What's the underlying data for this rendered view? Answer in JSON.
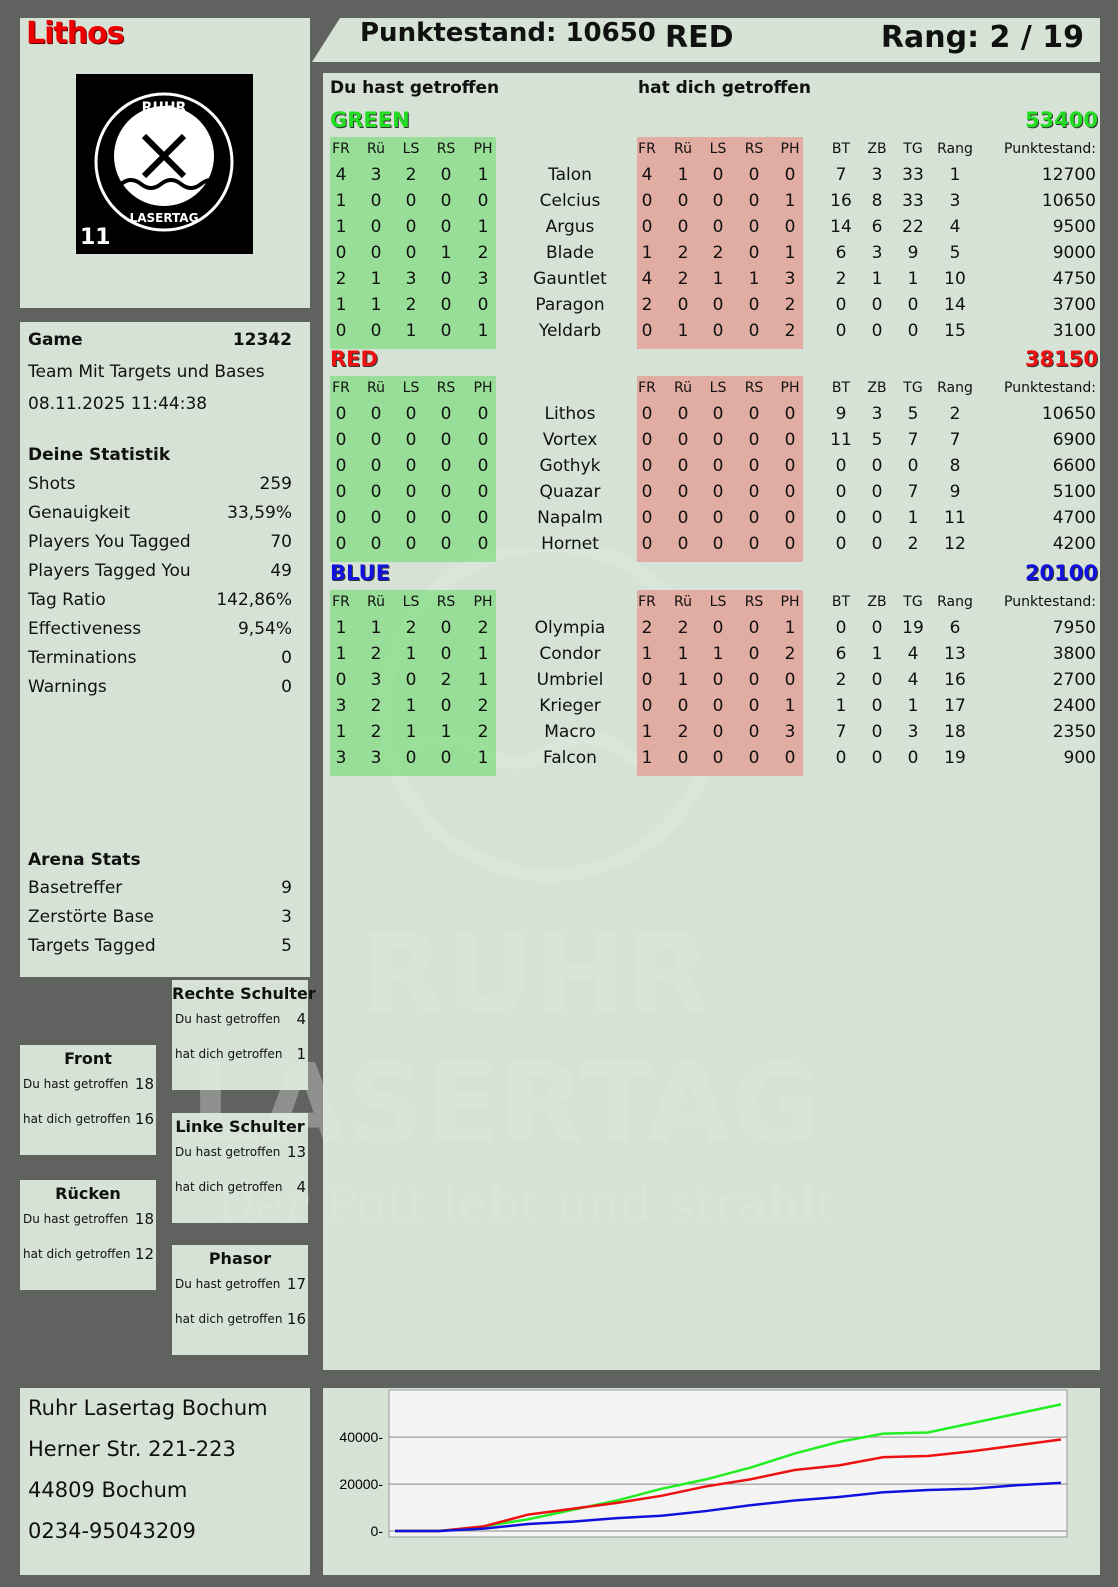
{
  "player": {
    "name": "Lithos",
    "score_label": "Punktestand: 10650",
    "team": "RED",
    "rank_label": "Rang: 2 / 19",
    "logo_text": "RUHR LASERTAG",
    "logo_number": "11"
  },
  "game": {
    "label": "Game",
    "id": "12342",
    "mode": "Team Mit Targets und Bases",
    "datetime": "08.11.2025 11:44:38"
  },
  "stats": {
    "title": "Deine Statistik",
    "items": [
      [
        "Shots",
        "259"
      ],
      [
        "Genauigkeit",
        "33,59%"
      ],
      [
        "Players You Tagged",
        "70"
      ],
      [
        "Players Tagged You",
        "49"
      ],
      [
        "Tag Ratio",
        "142,86%"
      ],
      [
        "Effectiveness",
        "9,54%"
      ],
      [
        "Terminations",
        "0"
      ],
      [
        "Warnings",
        "0"
      ]
    ]
  },
  "arena": {
    "title": "Arena Stats",
    "items": [
      [
        "Basetreffer",
        "9"
      ],
      [
        "Zerstörte Base",
        "3"
      ],
      [
        "Targets Tagged",
        "5"
      ]
    ]
  },
  "zones": [
    {
      "title": "Rechte Schulter",
      "hit": "4",
      "got": "1"
    },
    {
      "title": "Front",
      "hit": "18",
      "got": "16"
    },
    {
      "title": "Linke Schulter",
      "hit": "13",
      "got": "4"
    },
    {
      "title": "Rücken",
      "hit": "18",
      "got": "12"
    },
    {
      "title": "Phasor",
      "hit": "17",
      "got": "16"
    }
  ],
  "zone_labels": {
    "hit": "Du hast getroffen",
    "got": "hat dich getroffen"
  },
  "main": {
    "hit_title": "Du hast getroffen",
    "got_title": "hat dich getroffen",
    "cols_hit": [
      "FR",
      "Rü",
      "LS",
      "RS",
      "PH"
    ],
    "cols_stats": [
      "BT",
      "ZB",
      "TG",
      "Rang"
    ],
    "score_col": "Punktestand:"
  },
  "teams": [
    {
      "name": "GREEN",
      "score": "53400",
      "color": "#22dd22",
      "players": [
        [
          "Talon",
          [
            4,
            3,
            2,
            0,
            1
          ],
          [
            4,
            1,
            0,
            0,
            0
          ],
          [
            7,
            3,
            33,
            1
          ],
          12700
        ],
        [
          "Celcius",
          [
            1,
            0,
            0,
            0,
            0
          ],
          [
            0,
            0,
            0,
            0,
            1
          ],
          [
            16,
            8,
            33,
            3
          ],
          10650
        ],
        [
          "Argus",
          [
            1,
            0,
            0,
            0,
            1
          ],
          [
            0,
            0,
            0,
            0,
            0
          ],
          [
            14,
            6,
            22,
            4
          ],
          9500
        ],
        [
          "Blade",
          [
            0,
            0,
            0,
            1,
            2
          ],
          [
            1,
            2,
            2,
            0,
            1
          ],
          [
            6,
            3,
            9,
            5
          ],
          9000
        ],
        [
          "Gauntlet",
          [
            2,
            1,
            3,
            0,
            3
          ],
          [
            4,
            2,
            1,
            1,
            3
          ],
          [
            2,
            1,
            1,
            10
          ],
          4750
        ],
        [
          "Paragon",
          [
            1,
            1,
            2,
            0,
            0
          ],
          [
            2,
            0,
            0,
            0,
            2
          ],
          [
            0,
            0,
            0,
            14
          ],
          3700
        ],
        [
          "Yeldarb",
          [
            0,
            0,
            1,
            0,
            1
          ],
          [
            0,
            1,
            0,
            0,
            2
          ],
          [
            0,
            0,
            0,
            15
          ],
          3100
        ]
      ]
    },
    {
      "name": "RED",
      "score": "38150",
      "color": "#ee1111",
      "players": [
        [
          "Lithos",
          [
            0,
            0,
            0,
            0,
            0
          ],
          [
            0,
            0,
            0,
            0,
            0
          ],
          [
            9,
            3,
            5,
            2
          ],
          10650
        ],
        [
          "Vortex",
          [
            0,
            0,
            0,
            0,
            0
          ],
          [
            0,
            0,
            0,
            0,
            0
          ],
          [
            11,
            5,
            7,
            7
          ],
          6900
        ],
        [
          "Gothyk",
          [
            0,
            0,
            0,
            0,
            0
          ],
          [
            0,
            0,
            0,
            0,
            0
          ],
          [
            0,
            0,
            0,
            8
          ],
          6600
        ],
        [
          "Quazar",
          [
            0,
            0,
            0,
            0,
            0
          ],
          [
            0,
            0,
            0,
            0,
            0
          ],
          [
            0,
            0,
            7,
            9
          ],
          5100
        ],
        [
          "Napalm",
          [
            0,
            0,
            0,
            0,
            0
          ],
          [
            0,
            0,
            0,
            0,
            0
          ],
          [
            0,
            0,
            1,
            11
          ],
          4700
        ],
        [
          "Hornet",
          [
            0,
            0,
            0,
            0,
            0
          ],
          [
            0,
            0,
            0,
            0,
            0
          ],
          [
            0,
            0,
            2,
            12
          ],
          4200
        ]
      ]
    },
    {
      "name": "BLUE",
      "score": "20100",
      "color": "#1111dd",
      "players": [
        [
          "Olympia",
          [
            1,
            1,
            2,
            0,
            2
          ],
          [
            2,
            2,
            0,
            0,
            1
          ],
          [
            0,
            0,
            19,
            6
          ],
          7950
        ],
        [
          "Condor",
          [
            1,
            2,
            1,
            0,
            1
          ],
          [
            1,
            1,
            1,
            0,
            2
          ],
          [
            6,
            1,
            4,
            13
          ],
          3800
        ],
        [
          "Umbriel",
          [
            0,
            3,
            0,
            2,
            1
          ],
          [
            0,
            1,
            0,
            0,
            0
          ],
          [
            2,
            0,
            4,
            16
          ],
          2700
        ],
        [
          "Krieger",
          [
            3,
            2,
            1,
            0,
            2
          ],
          [
            0,
            0,
            0,
            0,
            1
          ],
          [
            1,
            0,
            1,
            17
          ],
          2400
        ],
        [
          "Macro",
          [
            1,
            2,
            1,
            1,
            2
          ],
          [
            1,
            2,
            0,
            0,
            3
          ],
          [
            7,
            0,
            3,
            18
          ],
          2350
        ],
        [
          "Falcon",
          [
            3,
            3,
            0,
            0,
            1
          ],
          [
            1,
            0,
            0,
            0,
            0
          ],
          [
            0,
            0,
            0,
            19
          ],
          900
        ]
      ]
    }
  ],
  "address": [
    "Ruhr Lasertag Bochum",
    "Herner Str. 221-223",
    "44809 Bochum",
    "0234-95043209"
  ],
  "watermark": {
    "line1": "RUHR",
    "line2": "LASERTAG",
    "slogan": "Der Pott lebt und strahlt"
  },
  "chart_data": {
    "type": "line",
    "ylim": [
      0,
      55000
    ],
    "yticks": [
      0,
      20000,
      40000
    ],
    "grid": true,
    "series": [
      {
        "color": "#22ee22",
        "values": [
          0,
          0,
          2000,
          5000,
          9000,
          13000,
          18000,
          22000,
          27000,
          33000,
          38000,
          41500,
          42000,
          46000,
          50000,
          54000
        ]
      },
      {
        "color": "#ee1111",
        "values": [
          0,
          0,
          2000,
          7000,
          9500,
          12000,
          15000,
          19000,
          22000,
          26000,
          28000,
          31500,
          32000,
          34000,
          36500,
          39000
        ]
      },
      {
        "color": "#1111dd",
        "values": [
          0,
          0,
          1000,
          3000,
          4000,
          5500,
          6500,
          8500,
          11000,
          13000,
          14500,
          16500,
          17500,
          18000,
          19500,
          20500
        ]
      }
    ]
  }
}
